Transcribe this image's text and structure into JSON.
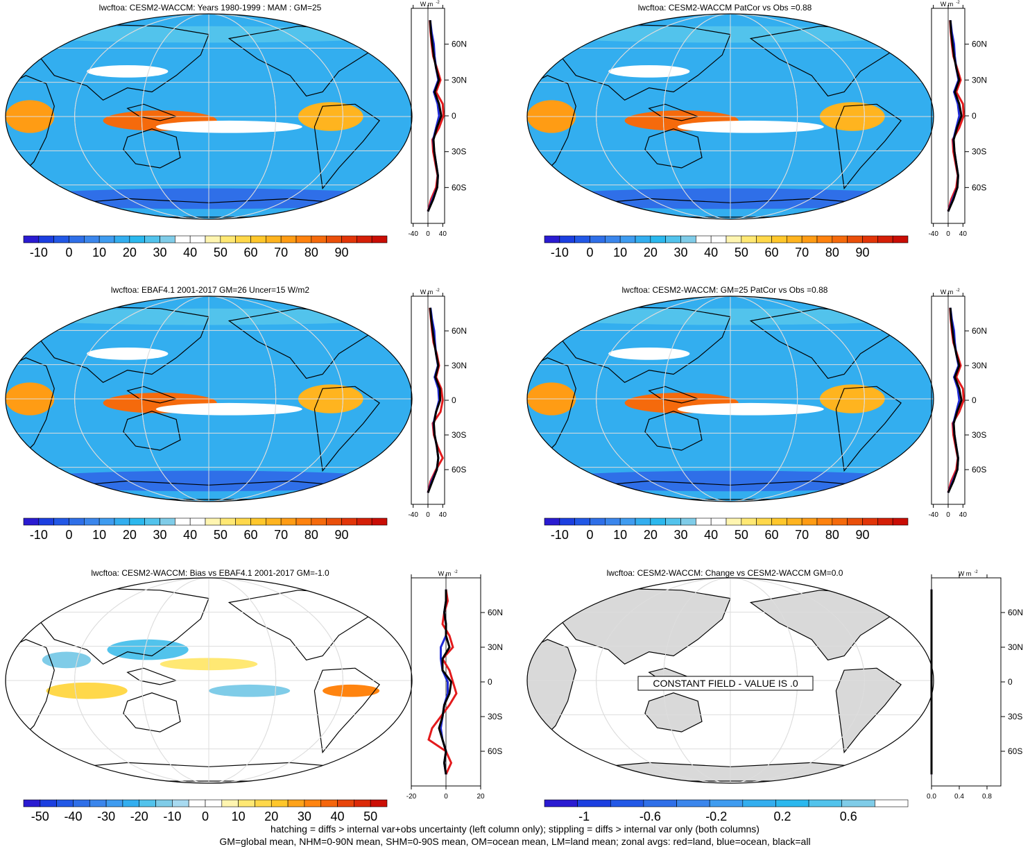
{
  "figure": {
    "footer_line1": "hatching = diffs > internal var+obs uncertainty (left column only); stippling = diffs > internal var only (both columns)",
    "footer_line2": "GM=global mean, NHM=0-90N mean, SHM=0-90S mean, OM=ocean mean, LM=land mean; zonal avgs: red=land, blue=ocean, black=all"
  },
  "colors": {
    "line_land": "#e31a1c",
    "line_ocean": "#1f2bd6",
    "line_all": "#000000",
    "land_gray": "#d9d9d9",
    "grid": "#dddddd"
  },
  "chart_data": [
    {
      "type": "heatmap",
      "title": "lwcftoa: CESM2-WACCM: Years 1980-1999 : MAM : GM=25",
      "colorbar": {
        "labels": [
          "-10",
          "0",
          "10",
          "20",
          "30",
          "40",
          "50",
          "60",
          "70",
          "80",
          "90"
        ],
        "bins": 24,
        "palette": "abs"
      },
      "zonal": {
        "units": "W m",
        "units_sup": "-2",
        "xticks": [
          "-40",
          "0",
          "40"
        ],
        "xlim": [
          -45,
          45
        ],
        "lat_labels": [
          "60N",
          "30N",
          "0",
          "30S",
          "60S"
        ],
        "lat": [
          -80,
          -70,
          -60,
          -50,
          -40,
          -30,
          -20,
          -10,
          0,
          10,
          20,
          30,
          40,
          50,
          60,
          70,
          80
        ],
        "all": [
          0,
          14,
          25,
          27,
          22,
          17,
          15,
          24,
          36,
          30,
          18,
          30,
          22,
          16,
          12,
          8,
          6
        ],
        "ocean": [
          0,
          12,
          25,
          27,
          22,
          17,
          14,
          22,
          30,
          26,
          16,
          28,
          22,
          18,
          16,
          10,
          6
        ],
        "land": [
          0,
          8,
          22,
          26,
          20,
          14,
          12,
          30,
          42,
          40,
          22,
          34,
          24,
          14,
          10,
          7,
          5
        ]
      }
    },
    {
      "type": "heatmap",
      "title": "lwcftoa: CESM2-WACCM PatCor vs Obs =0.88",
      "colorbar": {
        "labels": [
          "-10",
          "0",
          "10",
          "20",
          "30",
          "40",
          "50",
          "60",
          "70",
          "80",
          "90"
        ],
        "bins": 24,
        "palette": "abs"
      },
      "zonal": {
        "units": "W m",
        "units_sup": "-2",
        "xticks": [
          "-40",
          "0",
          "40"
        ],
        "xlim": [
          -45,
          45
        ],
        "lat_labels": [
          "60N",
          "30N",
          "0",
          "30S",
          "60S"
        ],
        "lat": [
          -80,
          -70,
          -60,
          -50,
          -40,
          -30,
          -20,
          -10,
          0,
          10,
          20,
          30,
          40,
          50,
          60,
          70,
          80
        ],
        "all": [
          0,
          14,
          25,
          27,
          22,
          17,
          15,
          24,
          36,
          30,
          18,
          30,
          22,
          16,
          12,
          8,
          6
        ],
        "ocean": [
          0,
          12,
          25,
          27,
          22,
          17,
          14,
          22,
          30,
          26,
          16,
          28,
          22,
          18,
          16,
          10,
          6
        ],
        "land": [
          0,
          8,
          22,
          26,
          20,
          14,
          12,
          30,
          42,
          40,
          22,
          34,
          24,
          14,
          10,
          7,
          5
        ]
      }
    },
    {
      "type": "heatmap",
      "title": "lwcftoa: EBAF4.1 2001-2017 GM=26 Uncer=15 W/m2",
      "colorbar": {
        "labels": [
          "-10",
          "0",
          "10",
          "20",
          "30",
          "40",
          "50",
          "60",
          "70",
          "80",
          "90"
        ],
        "bins": 24,
        "palette": "abs"
      },
      "zonal": {
        "units": "W m",
        "units_sup": "-2",
        "xticks": [
          "-40",
          "0",
          "40"
        ],
        "xlim": [
          -45,
          45
        ],
        "lat_labels": [
          "60N",
          "30N",
          "0",
          "30S",
          "60S"
        ],
        "lat": [
          -80,
          -70,
          -60,
          -50,
          -40,
          -30,
          -20,
          -10,
          0,
          10,
          20,
          30,
          40,
          50,
          60,
          70,
          80
        ],
        "all": [
          0,
          12,
          24,
          28,
          24,
          18,
          16,
          22,
          33,
          32,
          20,
          28,
          22,
          17,
          13,
          9,
          6
        ],
        "ocean": [
          0,
          10,
          24,
          28,
          24,
          18,
          15,
          22,
          30,
          28,
          18,
          27,
          22,
          19,
          17,
          11,
          7
        ],
        "land": [
          0,
          7,
          22,
          40,
          26,
          16,
          13,
          34,
          40,
          36,
          22,
          30,
          24,
          15,
          11,
          8,
          5
        ]
      }
    },
    {
      "type": "heatmap",
      "title": "lwcftoa: CESM2-WACCM: GM=25 PatCor vs Obs =0.88",
      "colorbar": {
        "labels": [
          "-10",
          "0",
          "10",
          "20",
          "30",
          "40",
          "50",
          "60",
          "70",
          "80",
          "90"
        ],
        "bins": 24,
        "palette": "abs"
      },
      "zonal": {
        "units": "W m",
        "units_sup": "-2",
        "xticks": [
          "-40",
          "0",
          "40"
        ],
        "xlim": [
          -45,
          45
        ],
        "lat_labels": [
          "60N",
          "30N",
          "0",
          "30S",
          "60S"
        ],
        "lat": [
          -80,
          -70,
          -60,
          -50,
          -40,
          -30,
          -20,
          -10,
          0,
          10,
          20,
          30,
          40,
          50,
          60,
          70,
          80
        ],
        "all": [
          0,
          14,
          25,
          27,
          22,
          17,
          15,
          24,
          36,
          30,
          18,
          30,
          22,
          16,
          12,
          8,
          6
        ],
        "ocean": [
          0,
          12,
          25,
          27,
          22,
          17,
          14,
          22,
          30,
          26,
          16,
          28,
          22,
          18,
          16,
          10,
          6
        ],
        "land": [
          0,
          8,
          22,
          26,
          20,
          14,
          12,
          30,
          42,
          40,
          22,
          34,
          24,
          14,
          10,
          7,
          5
        ]
      }
    },
    {
      "type": "heatmap",
      "title": "lwcftoa: CESM2-WACCM: Bias vs EBAF4.1 2001-2017 GM=-1.0",
      "colorbar": {
        "labels": [
          "-50",
          "-40",
          "-30",
          "-20",
          "-10",
          "0",
          "10",
          "20",
          "30",
          "40",
          "50"
        ],
        "bins": 22,
        "palette": "diff"
      },
      "zonal": {
        "units": "W m",
        "units_sup": "-2",
        "xticks": [
          "-20",
          "0",
          "20"
        ],
        "xlim": [
          -20,
          20
        ],
        "lat_labels": [
          "60N",
          "30N",
          "0",
          "30S",
          "60S"
        ],
        "lat": [
          -80,
          -70,
          -60,
          -50,
          -40,
          -30,
          -20,
          -10,
          0,
          10,
          20,
          30,
          40,
          50,
          60,
          70,
          80
        ],
        "all": [
          0,
          -1,
          0,
          -2,
          -4,
          -2,
          -1,
          2,
          3,
          -2,
          -2,
          2,
          0,
          0,
          -1,
          0,
          0
        ],
        "ocean": [
          0,
          -1,
          0,
          -2,
          -3,
          -2,
          -1,
          1,
          1,
          -2,
          -3,
          -3,
          0,
          0,
          -1,
          0,
          0
        ],
        "land": [
          0,
          3,
          0,
          -10,
          -8,
          -3,
          2,
          6,
          4,
          2,
          -2,
          4,
          2,
          -2,
          -1,
          1,
          0
        ]
      }
    },
    {
      "type": "heatmap",
      "title": "lwcftoa: CESM2-WACCM: Change vs CESM2-WACCM GM=0.0",
      "colorbar": {
        "labels": [
          "-1",
          "-0.6",
          "-0.2",
          "0.2",
          "0.6"
        ],
        "bins": 11,
        "palette": "chg"
      },
      "annotation": "CONSTANT FIELD - VALUE IS .0",
      "zonal": {
        "units": "W m",
        "units_sup": "-2",
        "xticks": [
          "0.0",
          "0.4",
          "0.8"
        ],
        "xlim": [
          0,
          1
        ],
        "lat_labels": [
          "60N",
          "30N",
          "0",
          "30S",
          "60S"
        ],
        "lat": [
          -80,
          -70,
          -60,
          -50,
          -40,
          -30,
          -20,
          -10,
          0,
          10,
          20,
          30,
          40,
          50,
          60,
          70,
          80
        ],
        "all": [
          0,
          0,
          0,
          0,
          0,
          0,
          0,
          0,
          0,
          0,
          0,
          0,
          0,
          0,
          0,
          0,
          0
        ],
        "ocean": [
          0,
          0,
          0,
          0,
          0,
          0,
          0,
          0,
          0,
          0,
          0,
          0,
          0,
          0,
          0,
          0,
          0
        ],
        "land": [
          0,
          0,
          0,
          0,
          0,
          0,
          0,
          0,
          0,
          0,
          0,
          0,
          0,
          0,
          0,
          0,
          0
        ]
      }
    }
  ]
}
